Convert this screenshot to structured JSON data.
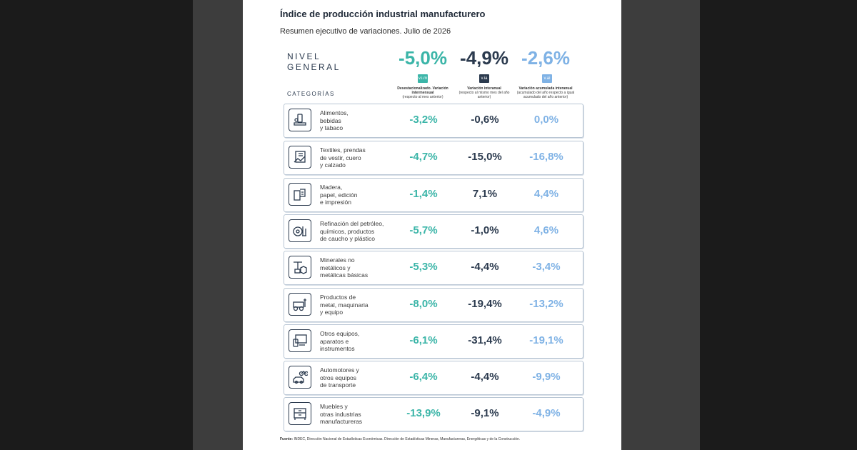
{
  "title": "Índice de producción industrial manufacturero",
  "subtitle": "Resumen ejecutivo de variaciones. Julio de 2026",
  "general": {
    "label_line1": "NIVEL",
    "label_line2": "GENERAL",
    "vm": "-5,0%",
    "ia": "-4,9%",
    "ai": "-2,6%"
  },
  "badges": {
    "vm": "v.i.m",
    "ia": "v.ia",
    "ai": "v.ai"
  },
  "columns": [
    {
      "title": "Desestacionalizado. Variación intermensual",
      "note": "(respecto al mes anterior)"
    },
    {
      "title": "Variación interanual",
      "note": "(respecto al mismo mes del año anterior)"
    },
    {
      "title": "Variación acumulada interanual",
      "note": "(acumulado del año respecto a igual acumulado del año anterior)"
    }
  ],
  "categories_header": "CATEGORÍAS",
  "colors": {
    "vm": "#3bb5a8",
    "ia": "#2b3a4e",
    "ai": "#7fb2e5"
  },
  "rows": [
    {
      "icon": "food-icon",
      "line1": "Alimentos,",
      "line2": "bebidas",
      "line3": "y tabaco",
      "vm": "-3,2%",
      "ia": "-0,6%",
      "ai": "0,0%"
    },
    {
      "icon": "textile-icon",
      "line1": "Textiles, prendas",
      "line2": "de vestir, cuero",
      "line3": "y calzado",
      "vm": "-4,7%",
      "ia": "-15,0%",
      "ai": "-16,8%"
    },
    {
      "icon": "paper-icon",
      "line1": "Madera,",
      "line2": "papel, edición",
      "line3": "e impresión",
      "vm": "-1,4%",
      "ia": "7,1%",
      "ai": "4,4%"
    },
    {
      "icon": "refinery-icon",
      "line1": "Refinación del petróleo,",
      "line2": "químicos, productos",
      "line3": "de caucho y plástico",
      "vm": "-5,7%",
      "ia": "-1,0%",
      "ai": "4,6%"
    },
    {
      "icon": "minerals-icon",
      "line1": "Minerales no",
      "line2": "metálicos y",
      "line3": "metálicas básicas",
      "vm": "-5,3%",
      "ia": "-4,4%",
      "ai": "-3,4%"
    },
    {
      "icon": "tractor-icon",
      "line1": "Productos de",
      "line2": "metal, maquinaria",
      "line3": "y equipo",
      "vm": "-8,0%",
      "ia": "-19,4%",
      "ai": "-13,2%"
    },
    {
      "icon": "devices-icon",
      "line1": "Otros equipos,",
      "line2": "aparatos e",
      "line3": "instrumentos",
      "vm": "-6,1%",
      "ia": "-31,4%",
      "ai": "-19,1%"
    },
    {
      "icon": "vehicles-icon",
      "line1": "Automotores y",
      "line2": "otros equipos",
      "line3": "de transporte",
      "vm": "-6,4%",
      "ia": "-4,4%",
      "ai": "-9,9%"
    },
    {
      "icon": "furniture-icon",
      "line1": "Muebles y",
      "line2": "otras industrias",
      "line3": "manufactureras",
      "vm": "-13,9%",
      "ia": "-9,1%",
      "ai": "-4,9%"
    }
  ],
  "source": {
    "label": "Fuente:",
    "text": "INDEC, Dirección Nacional de Estadísticas Económicas. Dirección de Estadísticas Mineras, Manufactureras, Energéticas y de la Construcción."
  }
}
